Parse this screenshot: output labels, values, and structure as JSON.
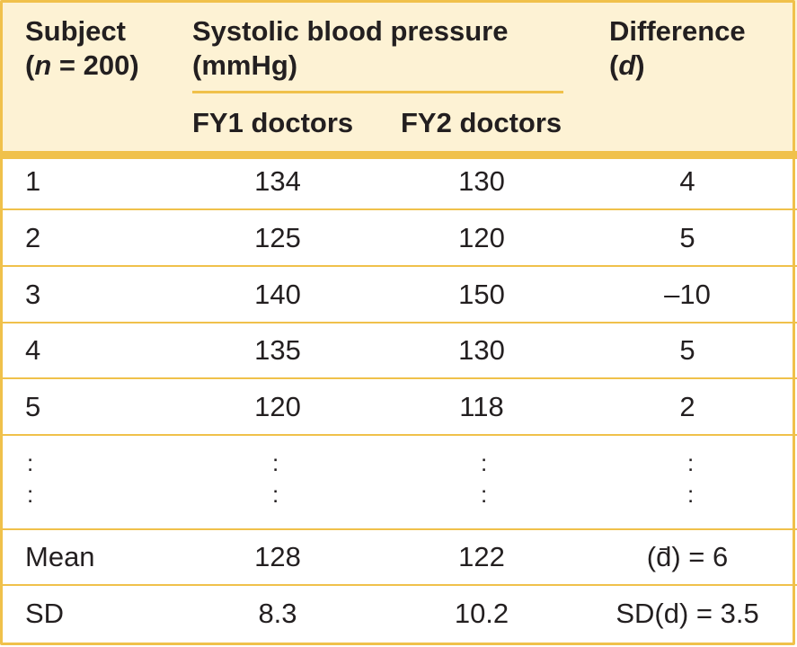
{
  "header": {
    "subject_line1": "Subject",
    "subject_line2": "(n = 200)",
    "sbp_line1": "Systolic blood pressure",
    "sbp_line2": "(mmHg)",
    "fy1": "FY1 doctors",
    "fy2": "FY2 doctors",
    "diff_line1": "Difference",
    "diff_line2": "(d)"
  },
  "rows": [
    {
      "subject": "1",
      "fy1": "134",
      "fy2": "130",
      "diff": "4"
    },
    {
      "subject": "2",
      "fy1": "125",
      "fy2": "120",
      "diff": "5"
    },
    {
      "subject": "3",
      "fy1": "140",
      "fy2": "150",
      "diff": "–10"
    },
    {
      "subject": "4",
      "fy1": "135",
      "fy2": "130",
      "diff": "5"
    },
    {
      "subject": "5",
      "fy1": "120",
      "fy2": "118",
      "diff": "2"
    }
  ],
  "ellipsis": ":",
  "mean": {
    "label": "Mean",
    "fy1": "128",
    "fy2": "122",
    "diff": "(d̄) = 6"
  },
  "sd": {
    "label": "SD",
    "fy1": "8.3",
    "fy2": "10.2",
    "diff": "SD(d) = 3.5"
  },
  "colors": {
    "rule": "#f0c14b",
    "header_fill": "#fdf2d4",
    "text": "#231f20"
  }
}
